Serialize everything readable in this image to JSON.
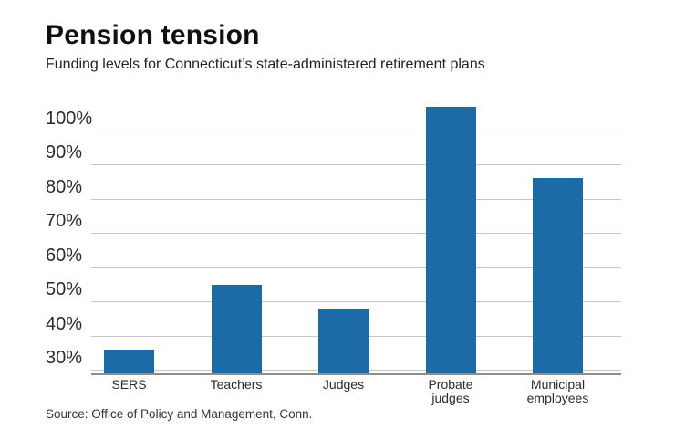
{
  "header": {
    "title": "Pension tension",
    "subtitle": "Funding levels for Connecticut’s state-administered retirement plans"
  },
  "source_note": "Source: Office of Policy and Management, Conn.",
  "colors": {
    "bar": "#1c6ba6",
    "gridline": "#c6c6c6",
    "baseline": "#8e8e8e",
    "title_text": "#101010",
    "label_text": "#2b2b2b"
  },
  "chart_data": {
    "type": "bar",
    "title": "Pension tension",
    "subtitle": "Funding levels for Connecticut’s state-administered retirement plans",
    "categories": [
      "SERS",
      "Teachers",
      "Judges",
      "Probate judges",
      "Municipal employees"
    ],
    "values": [
      36,
      55,
      48,
      107,
      86
    ],
    "unit": "%",
    "xlabel": "",
    "ylabel": "",
    "y_ticks": [
      100,
      90,
      80,
      70,
      60,
      50,
      40,
      30
    ],
    "y_tick_labels": [
      "100%",
      "90%",
      "80%",
      "70%",
      "60%",
      "50%",
      "40%",
      "30%"
    ],
    "ylim": [
      29,
      111
    ],
    "grid": true,
    "legend": false,
    "source": "Source: Office of Policy and Management, Conn."
  }
}
